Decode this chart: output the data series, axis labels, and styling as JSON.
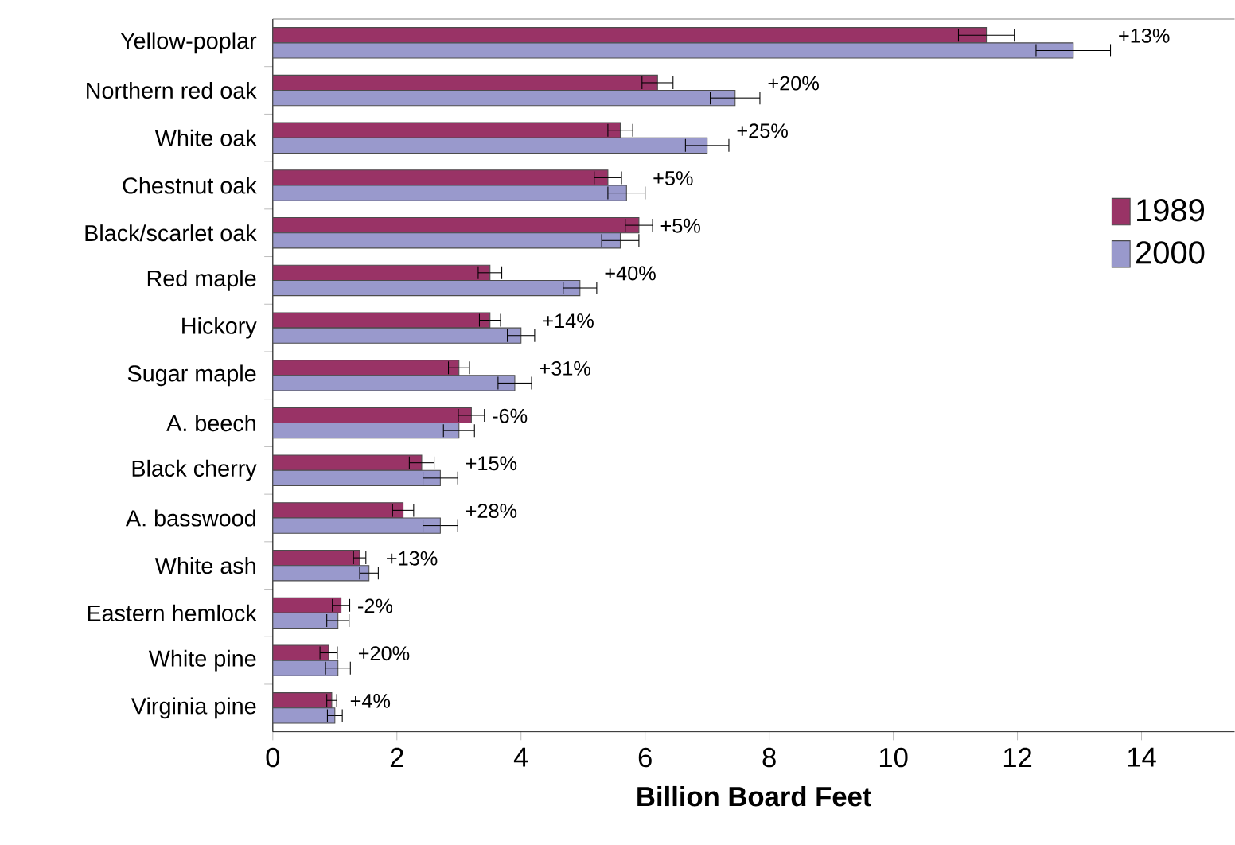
{
  "chart_data": {
    "type": "bar",
    "orientation": "horizontal",
    "xlabel": "Billion Board Feet",
    "categories": [
      "Yellow-poplar",
      "Northern red oak",
      "White oak",
      "Chestnut oak",
      "Black/scarlet oak",
      "Red maple",
      "Hickory",
      "Sugar maple",
      "A. beech",
      "Black cherry",
      "A. basswood",
      "White ash",
      "Eastern hemlock",
      "White pine",
      "Virginia pine"
    ],
    "series": [
      {
        "name": "1989",
        "color": "#993366",
        "values": [
          11.5,
          6.2,
          5.6,
          5.4,
          5.9,
          3.5,
          3.5,
          3.0,
          3.2,
          2.4,
          2.1,
          1.4,
          1.1,
          0.9,
          0.95
        ],
        "errors": [
          0.45,
          0.25,
          0.2,
          0.22,
          0.22,
          0.19,
          0.17,
          0.17,
          0.21,
          0.2,
          0.17,
          0.1,
          0.14,
          0.14,
          0.08
        ]
      },
      {
        "name": "2000",
        "color": "#9999cc",
        "values": [
          12.9,
          7.45,
          7.0,
          5.7,
          5.6,
          4.95,
          4.0,
          3.9,
          3.0,
          2.7,
          2.7,
          1.55,
          1.05,
          1.05,
          1.0
        ],
        "errors": [
          0.6,
          0.4,
          0.35,
          0.3,
          0.3,
          0.27,
          0.22,
          0.27,
          0.25,
          0.28,
          0.28,
          0.15,
          0.18,
          0.2,
          0.12
        ]
      }
    ],
    "annotations": [
      "+13%",
      "+20%",
      "+25%",
      "+5%",
      "+5%",
      "+40%",
      "+14%",
      "+31%",
      "-6%",
      "+15%",
      "+28%",
      "+13%",
      "-2%",
      "+20%",
      "+4%"
    ],
    "xlim": [
      0,
      15.5
    ],
    "xticks": [
      0,
      2,
      4,
      6,
      8,
      10,
      12,
      14
    ],
    "legend": "right",
    "grid": false
  }
}
